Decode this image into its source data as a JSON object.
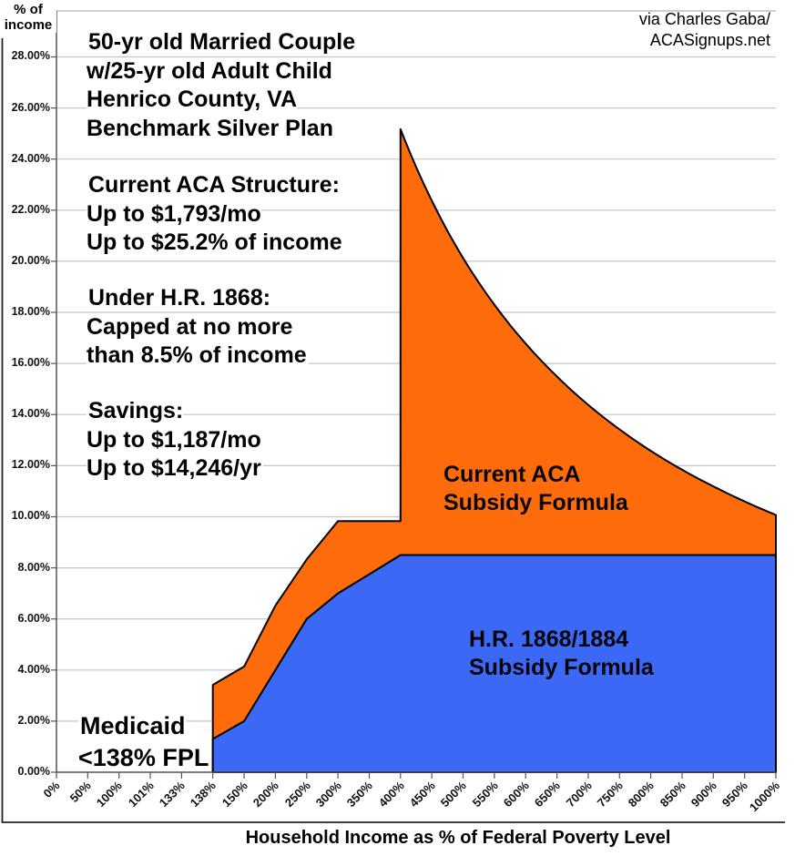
{
  "credit": "via Charles Gaba/\nACASignups.net",
  "annotations": {
    "scenario": "50-yr old Married Couple\nw/25-yr old Adult Child\nHenrico County, VA\nBenchmark Silver Plan",
    "current_structure": "Current ACA Structure:\nUp to $1,793/mo\nUp to $25.2% of income",
    "hr1868": "Under H.R. 1868:\nCapped at no more\nthan 8.5% of income",
    "savings": "Savings:\nUp to $1,187/mo\nUp to $14,246/yr",
    "medicaid": "Medicaid\n<138% FPL"
  },
  "chart_data": {
    "type": "area",
    "x_axis_title": "Household Income as % of Federal Poverty Level",
    "y_axis_title": "% of\nincome",
    "categories": [
      "0%",
      "50%",
      "100%",
      "101%",
      "133%",
      "138%",
      "150%",
      "200%",
      "250%",
      "300%",
      "350%",
      "400%",
      "450%",
      "500%",
      "550%",
      "600%",
      "650%",
      "700%",
      "750%",
      "800%",
      "850%",
      "900%",
      "950%",
      "1000%"
    ],
    "y_tick_values": [
      0,
      2,
      4,
      6,
      8,
      10,
      12,
      14,
      16,
      18,
      20,
      22,
      24,
      26,
      28
    ],
    "y_tick_labels": [
      "0.00%",
      "2.00%",
      "4.00%",
      "6.00%",
      "8.00%",
      "10.00%",
      "12.00%",
      "14.00%",
      "16.00%",
      "18.00%",
      "20.00%",
      "22.00%",
      "24.00%",
      "26.00%",
      "28.00%"
    ],
    "ylim": [
      0,
      29.8
    ],
    "grid": true,
    "gridline_color": "#c5c5c5",
    "outline_color": "#000000",
    "series": [
      {
        "name": "Current ACA Subsidy Formula",
        "label": "Current ACA\nSubsidy Formula",
        "color": "#fd6b0a",
        "points": [
          {
            "fpl": "138%",
            "v": 3.42
          },
          {
            "fpl": "150%",
            "v": 4.14
          },
          {
            "fpl": "200%",
            "v": 6.52
          },
          {
            "fpl": "250%",
            "v": 8.33
          },
          {
            "fpl": "300%",
            "v": 9.83
          },
          {
            "fpl": "350%",
            "v": 9.83
          },
          {
            "fpl": "400%",
            "v": 9.83
          },
          {
            "fpl": "400%",
            "v": 25.17
          },
          {
            "fpl": "450%",
            "v": 22.37
          },
          {
            "fpl": "500%",
            "v": 20.13
          },
          {
            "fpl": "550%",
            "v": 18.3
          },
          {
            "fpl": "600%",
            "v": 16.78
          },
          {
            "fpl": "650%",
            "v": 15.49
          },
          {
            "fpl": "700%",
            "v": 14.38
          },
          {
            "fpl": "750%",
            "v": 13.42
          },
          {
            "fpl": "800%",
            "v": 12.58
          },
          {
            "fpl": "850%",
            "v": 11.84
          },
          {
            "fpl": "900%",
            "v": 11.19
          },
          {
            "fpl": "950%",
            "v": 10.6
          },
          {
            "fpl": "1000%",
            "v": 10.07
          }
        ]
      },
      {
        "name": "H.R. 1868/1884 Subsidy Formula",
        "label": "H.R. 1868/1884\nSubsidy Formula",
        "color": "#3b68f5",
        "points": [
          {
            "fpl": "138%",
            "v": 1.3
          },
          {
            "fpl": "150%",
            "v": 2.0
          },
          {
            "fpl": "200%",
            "v": 4.0
          },
          {
            "fpl": "250%",
            "v": 6.0
          },
          {
            "fpl": "300%",
            "v": 7.0
          },
          {
            "fpl": "350%",
            "v": 7.75
          },
          {
            "fpl": "400%",
            "v": 8.5
          },
          {
            "fpl": "450%",
            "v": 8.5
          },
          {
            "fpl": "500%",
            "v": 8.5
          },
          {
            "fpl": "550%",
            "v": 8.5
          },
          {
            "fpl": "600%",
            "v": 8.5
          },
          {
            "fpl": "650%",
            "v": 8.5
          },
          {
            "fpl": "700%",
            "v": 8.5
          },
          {
            "fpl": "750%",
            "v": 8.5
          },
          {
            "fpl": "800%",
            "v": 8.5
          },
          {
            "fpl": "850%",
            "v": 8.5
          },
          {
            "fpl": "900%",
            "v": 8.5
          },
          {
            "fpl": "950%",
            "v": 8.5
          },
          {
            "fpl": "1000%",
            "v": 8.5
          }
        ]
      }
    ]
  }
}
